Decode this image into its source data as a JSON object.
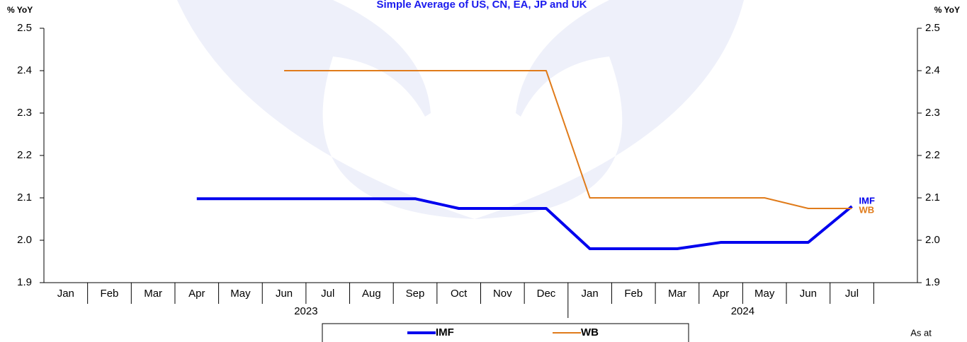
{
  "chart_data": {
    "type": "line",
    "title": "Simple Average of US, CN, EA, JP and UK",
    "y_label": "% YoY",
    "y2_label": "% YoY",
    "categories": [
      "Jan",
      "Feb",
      "Mar",
      "Apr",
      "May",
      "Jun",
      "Jul",
      "Aug",
      "Sep",
      "Oct",
      "Nov",
      "Dec",
      "Jan",
      "Feb",
      "Mar",
      "Apr",
      "May",
      "Jun",
      "Jul",
      null
    ],
    "years": [
      "2023",
      "2024"
    ],
    "series": [
      {
        "name": "IMF",
        "color": "#0000ee",
        "values": [
          null,
          null,
          null,
          2.098,
          2.098,
          2.098,
          2.098,
          2.098,
          2.098,
          2.075,
          2.075,
          2.075,
          1.98,
          1.98,
          1.98,
          1.995,
          1.995,
          1.995,
          2.08,
          null
        ]
      },
      {
        "name": "WB",
        "color": "#e07b1a",
        "values": [
          null,
          null,
          null,
          null,
          null,
          2.4,
          2.4,
          2.4,
          2.4,
          2.4,
          2.4,
          2.4,
          2.1,
          2.1,
          2.1,
          2.1,
          2.1,
          2.075,
          2.075,
          null
        ]
      }
    ],
    "ylim": [
      1.9,
      2.5
    ],
    "yticks": [
      1.9,
      {
        "value": 2,
        "label": "2.0"
      },
      2.1,
      2.2,
      2.3,
      2.4,
      2.5
    ],
    "y2lim": [
      1.9,
      2.5
    ],
    "y2ticks": [
      1.9,
      {
        "value": 2,
        "label": "2.0"
      },
      2.1,
      2.2,
      2.3,
      2.4,
      2.5
    ],
    "note": "As at"
  }
}
